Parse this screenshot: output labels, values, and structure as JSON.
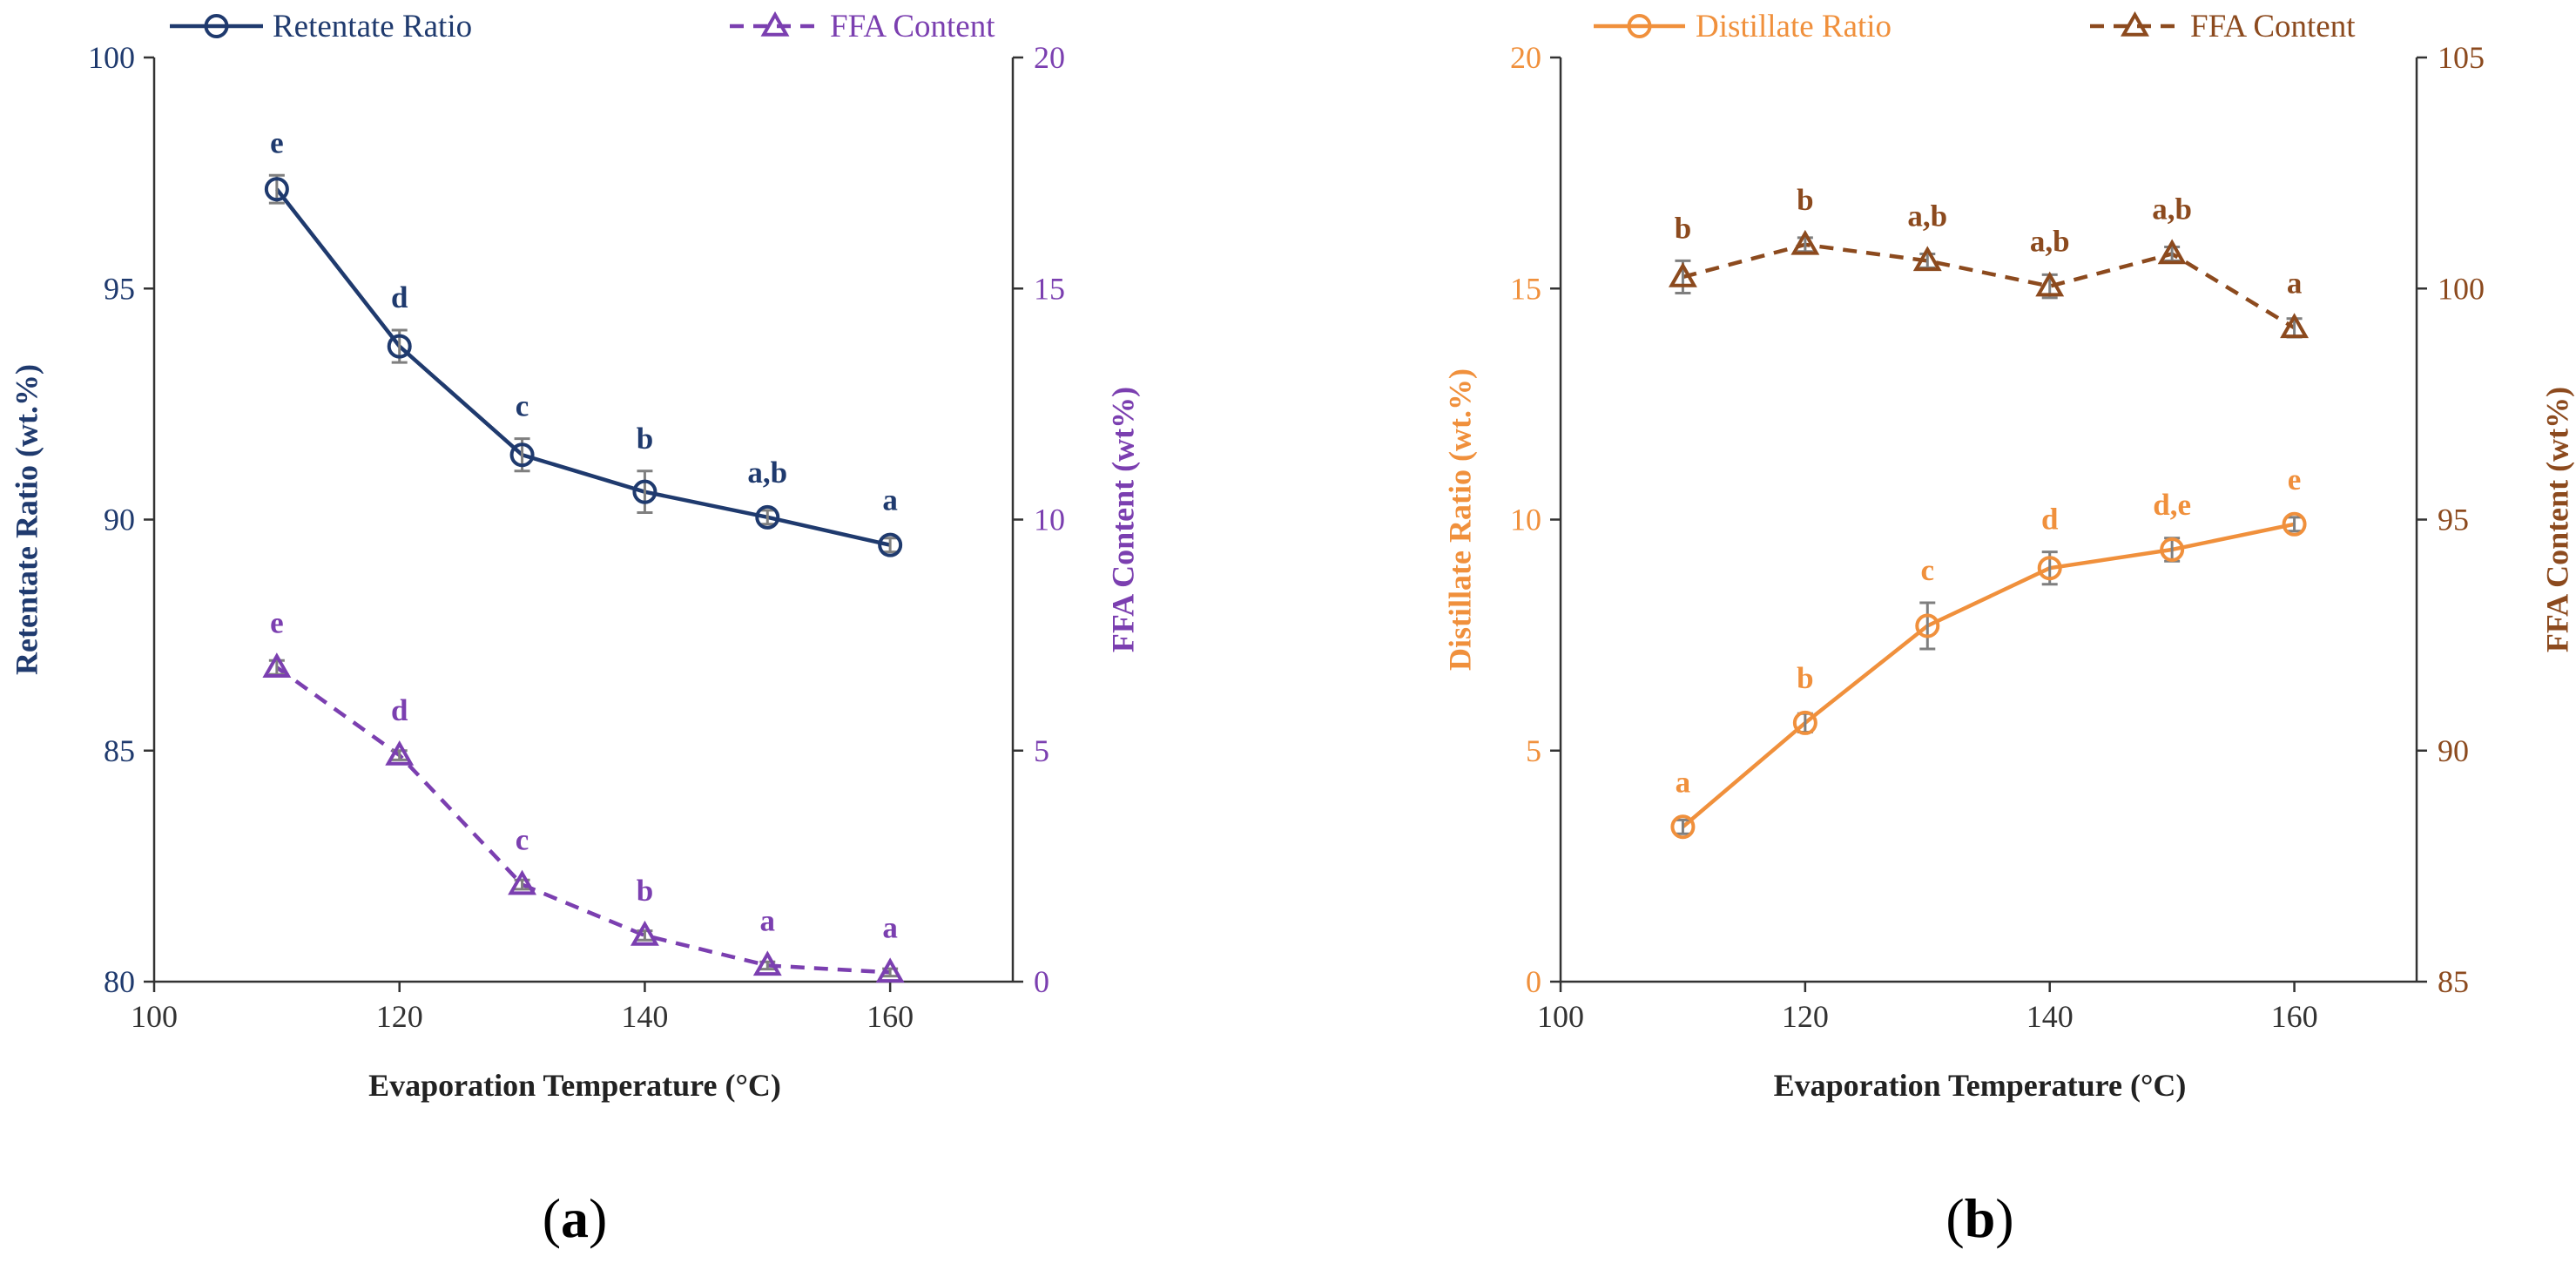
{
  "chart_data": [
    {
      "type": "line",
      "panel_label": "(a)",
      "panel_label_parts": {
        "open": "(",
        "letter": "a",
        "close": ")"
      },
      "xlabel": "Evaporation Temperature (°C)",
      "xlim": [
        100,
        170
      ],
      "xticks": [
        100,
        120,
        140,
        160
      ],
      "y_left": {
        "label": "Retentate Ratio (wt.%)",
        "lim": [
          80,
          100
        ],
        "ticks": [
          80,
          85,
          90,
          95,
          100
        ],
        "color": "#1f3a6e"
      },
      "y_right": {
        "label": "FFA Content (wt%)",
        "lim": [
          0,
          20
        ],
        "ticks": [
          0,
          5,
          10,
          15,
          20
        ],
        "color": "#7b3fb0"
      },
      "legend_position": "top",
      "series": [
        {
          "name": "Retentate Ratio",
          "axis": "left",
          "color": "#1f3a6e",
          "marker": "circle",
          "line_style": "solid",
          "x": [
            110,
            120,
            130,
            140,
            150,
            160
          ],
          "y": [
            97.15,
            93.75,
            91.4,
            90.6,
            90.05,
            89.45
          ],
          "err": [
            0.3,
            0.35,
            0.35,
            0.45,
            0.15,
            0.15
          ],
          "sig_labels": [
            "e",
            "d",
            "c",
            "b",
            "a,b",
            "a"
          ]
        },
        {
          "name": "FFA Content",
          "axis": "right",
          "color": "#7b3fb0",
          "marker": "triangle",
          "line_style": "dashed",
          "x": [
            110,
            120,
            130,
            140,
            150,
            160
          ],
          "y": [
            6.8,
            4.9,
            2.1,
            1.0,
            0.35,
            0.2
          ],
          "err": [
            0.15,
            0.1,
            0.1,
            0.1,
            0.08,
            0.08
          ],
          "sig_labels": [
            "e",
            "d",
            "c",
            "b",
            "a",
            "a"
          ]
        }
      ]
    },
    {
      "type": "line",
      "panel_label": "(b)",
      "panel_label_parts": {
        "open": "(",
        "letter": "b",
        "close": ")"
      },
      "xlabel": "Evaporation Temperature (°C)",
      "xlim": [
        100,
        170
      ],
      "xticks": [
        100,
        120,
        140,
        160
      ],
      "y_left": {
        "label": "Distillate Ratio (wt.%)",
        "lim": [
          0,
          20
        ],
        "ticks": [
          0,
          5,
          10,
          15,
          20
        ],
        "color": "#f0903c"
      },
      "y_right": {
        "label": "FFA Content (wt%)",
        "lim": [
          85,
          105
        ],
        "ticks": [
          85,
          90,
          95,
          100,
          105
        ],
        "color": "#8c4a1e"
      },
      "legend_position": "top",
      "series": [
        {
          "name": "Distillate Ratio",
          "axis": "left",
          "color": "#f0903c",
          "marker": "circle",
          "line_style": "solid",
          "x": [
            110,
            120,
            130,
            140,
            150,
            160
          ],
          "y": [
            3.35,
            5.6,
            7.7,
            8.95,
            9.35,
            9.9
          ],
          "err": [
            0.15,
            0.2,
            0.5,
            0.35,
            0.25,
            0.15
          ],
          "sig_labels": [
            "a",
            "b",
            "c",
            "d",
            "d,e",
            "e"
          ]
        },
        {
          "name": "FFA Content",
          "axis": "right",
          "color": "#8c4a1e",
          "marker": "triangle",
          "line_style": "dashed",
          "x": [
            110,
            120,
            130,
            140,
            150,
            160
          ],
          "y": [
            100.25,
            100.95,
            100.6,
            100.05,
            100.75,
            99.15
          ],
          "err": [
            0.35,
            0.15,
            0.15,
            0.25,
            0.15,
            0.2
          ],
          "sig_labels": [
            "b",
            "b",
            "a,b",
            "a,b",
            "a,b",
            "a"
          ]
        }
      ]
    }
  ]
}
